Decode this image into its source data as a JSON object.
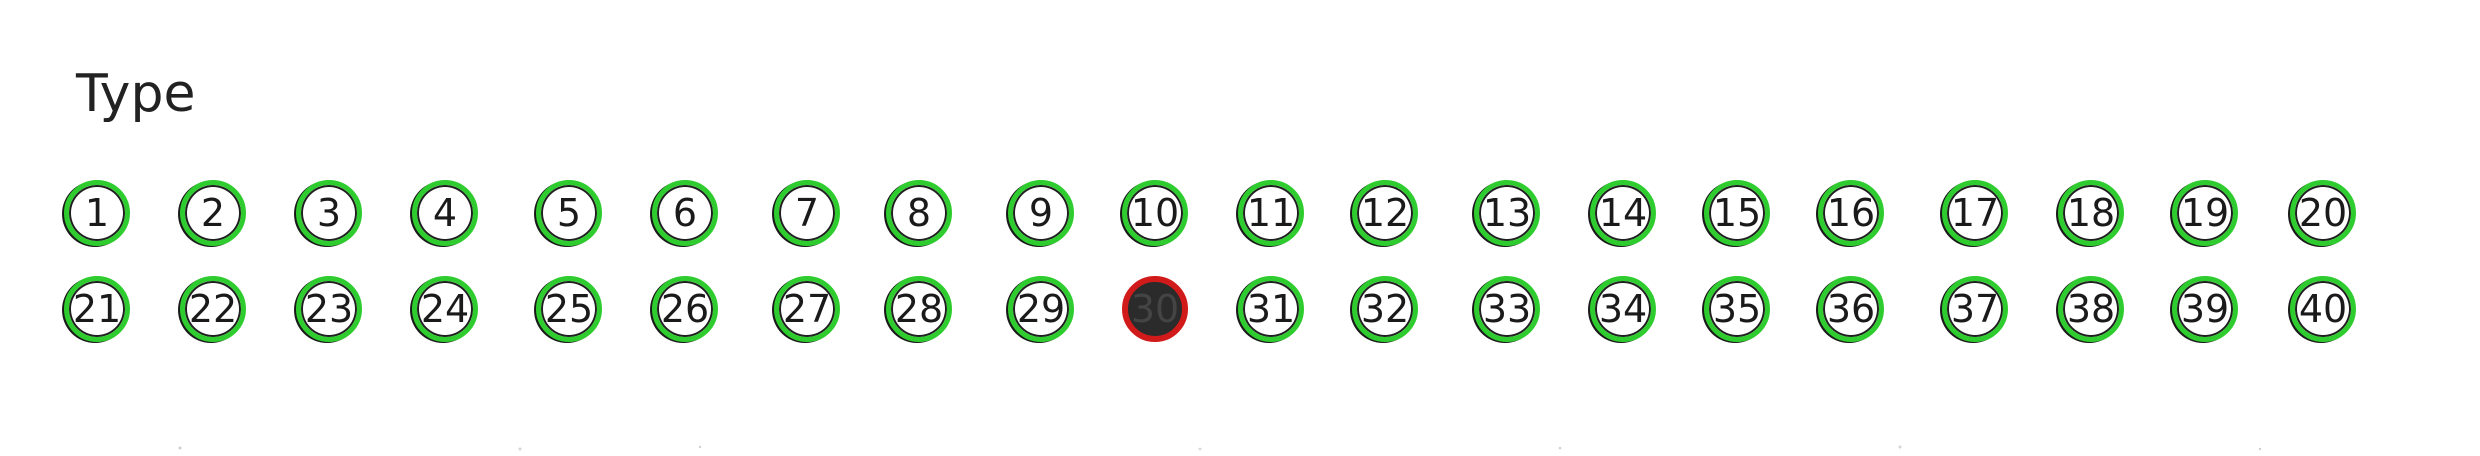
{
  "form": {
    "title": "Type",
    "bubbles": [
      {
        "label": "1"
      },
      {
        "label": "2"
      },
      {
        "label": "3"
      },
      {
        "label": "4"
      },
      {
        "label": "5"
      },
      {
        "label": "6"
      },
      {
        "label": "7"
      },
      {
        "label": "8"
      },
      {
        "label": "9"
      },
      {
        "label": "10"
      },
      {
        "label": "11"
      },
      {
        "label": "12"
      },
      {
        "label": "13"
      },
      {
        "label": "14"
      },
      {
        "label": "15"
      },
      {
        "label": "16"
      },
      {
        "label": "17"
      },
      {
        "label": "18"
      },
      {
        "label": "19"
      },
      {
        "label": "20"
      },
      {
        "label": "21"
      },
      {
        "label": "22"
      },
      {
        "label": "23"
      },
      {
        "label": "24"
      },
      {
        "label": "25"
      },
      {
        "label": "26"
      },
      {
        "label": "27"
      },
      {
        "label": "28"
      },
      {
        "label": "29"
      },
      {
        "label": "30"
      },
      {
        "label": "31"
      },
      {
        "label": "32"
      },
      {
        "label": "33"
      },
      {
        "label": "34"
      },
      {
        "label": "35"
      },
      {
        "label": "36"
      },
      {
        "label": "37"
      },
      {
        "label": "38"
      },
      {
        "label": "39"
      },
      {
        "label": "40"
      }
    ],
    "selected": "30",
    "colors": {
      "detected_outline": "#2ecc2e",
      "marked_outline": "#d11a1a",
      "marked_fill": "#2b2b2b"
    }
  }
}
